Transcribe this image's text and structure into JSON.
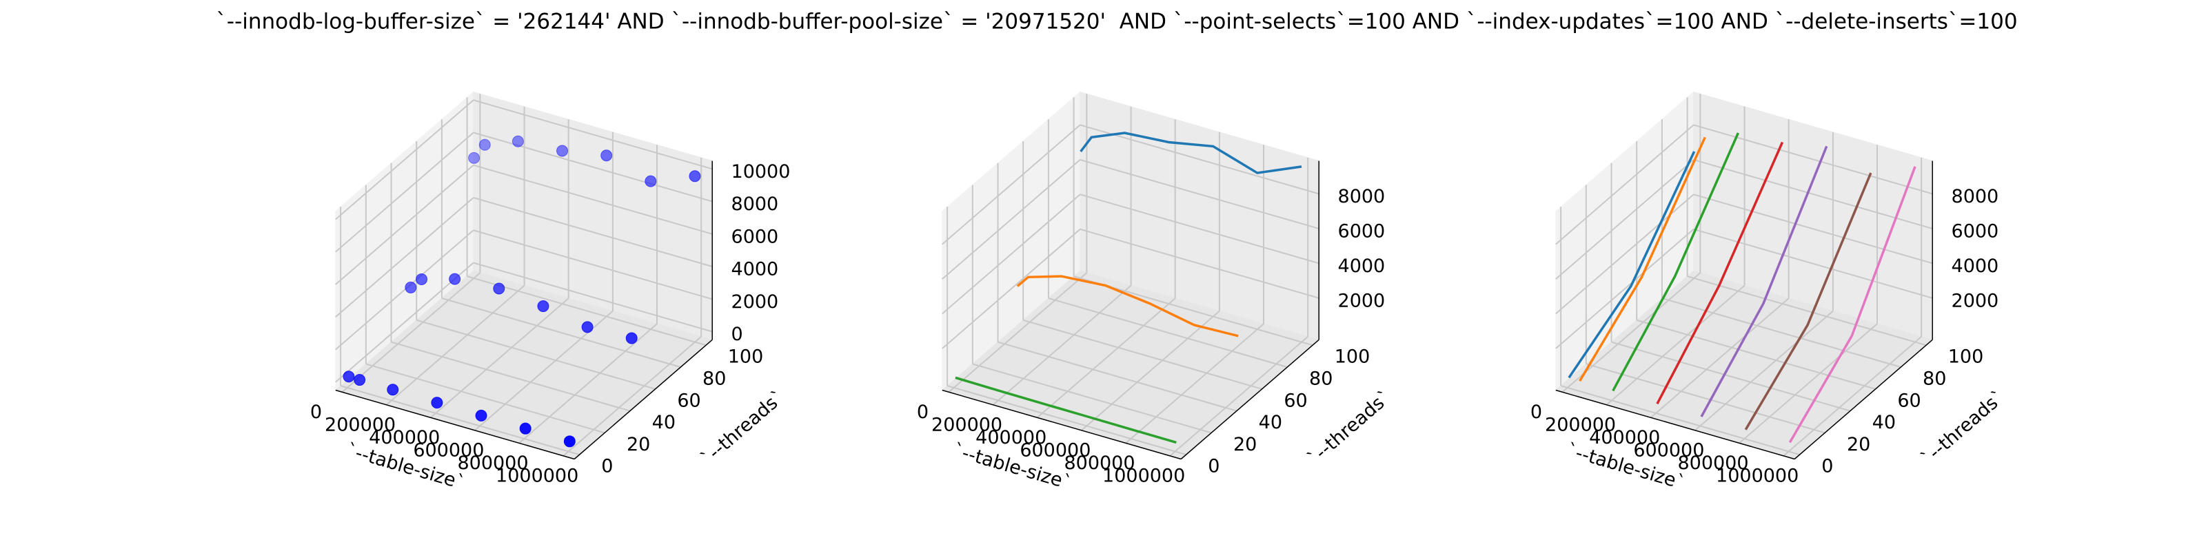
{
  "title": "`--innodb-log-buffer-size` = '262144' AND `--innodb-buffer-pool-size` = '20971520'  AND `--point-selects`=100 AND `--index-updates`=100 AND `--delete-inserts`=100",
  "chart_data": [
    {
      "type": "scatter3d",
      "xlabel": "`--table-size`",
      "ylabel": "`--threads`",
      "color": "#0000ff",
      "x": [
        1000,
        50000,
        200000,
        400000,
        600000,
        800000,
        1000000,
        1000,
        50000,
        200000,
        400000,
        600000,
        800000,
        1000000,
        1000,
        50000,
        200000,
        400000,
        600000,
        800000,
        1000000
      ],
      "y": [
        1,
        1,
        1,
        1,
        1,
        1,
        1,
        50,
        50,
        50,
        50,
        50,
        50,
        50,
        100,
        100,
        100,
        100,
        100,
        100,
        100
      ],
      "z": [
        120,
        110,
        95,
        80,
        70,
        60,
        55,
        2300,
        3000,
        3600,
        3800,
        3500,
        3000,
        3100,
        6900,
        7900,
        8700,
        8900,
        9400,
        8600,
        9700
      ],
      "xlim": [
        -30000,
        1050000
      ],
      "ylim": [
        -4,
        105
      ],
      "zlim": [
        -500,
        10500
      ],
      "xticks": [
        0,
        200000,
        400000,
        600000,
        800000,
        1000000
      ],
      "yticks": [
        0,
        20,
        40,
        60,
        80,
        100
      ],
      "zticks": [
        0,
        2000,
        4000,
        6000,
        8000,
        10000
      ]
    },
    {
      "type": "line3d",
      "xlabel": "`--table-size`",
      "ylabel": "`--threads`",
      "series": [
        {
          "color": "#1f77b4",
          "x": [
            1000,
            50000,
            200000,
            400000,
            600000,
            800000,
            1000000
          ],
          "y": [
            100,
            100,
            100,
            100,
            100,
            100,
            100
          ],
          "z": [
            6900,
            7900,
            8700,
            8900,
            9400,
            8600,
            9700
          ]
        },
        {
          "color": "#ff7f0e",
          "x": [
            1000,
            50000,
            200000,
            400000,
            600000,
            800000,
            1000000
          ],
          "y": [
            50,
            50,
            50,
            50,
            50,
            50,
            50
          ],
          "z": [
            2300,
            3000,
            3600,
            3800,
            3500,
            3000,
            3100
          ]
        },
        {
          "color": "#2ca02c",
          "x": [
            1000,
            50000,
            200000,
            400000,
            600000,
            800000,
            1000000
          ],
          "y": [
            1,
            1,
            1,
            1,
            1,
            1,
            1
          ],
          "z": [
            120,
            110,
            95,
            80,
            70,
            60,
            55
          ]
        }
      ],
      "xlim": [
        -30000,
        1050000
      ],
      "ylim": [
        -4,
        105
      ],
      "zlim": [
        -400,
        9900
      ],
      "xticks": [
        0,
        200000,
        400000,
        600000,
        800000,
        1000000
      ],
      "yticks": [
        0,
        20,
        40,
        60,
        80,
        100
      ],
      "zticks": [
        2000,
        4000,
        6000,
        8000
      ]
    },
    {
      "type": "line3d",
      "xlabel": "`--table-size`",
      "ylabel": "`--threads`",
      "series": [
        {
          "color": "#1f77b4",
          "x": [
            1000,
            1000,
            1000
          ],
          "y": [
            1,
            50,
            100
          ],
          "z": [
            120,
            2300,
            6900
          ]
        },
        {
          "color": "#ff7f0e",
          "x": [
            50000,
            50000,
            50000
          ],
          "y": [
            1,
            50,
            100
          ],
          "z": [
            110,
            3000,
            7900
          ]
        },
        {
          "color": "#2ca02c",
          "x": [
            200000,
            200000,
            200000
          ],
          "y": [
            1,
            50,
            100
          ],
          "z": [
            95,
            3600,
            8700
          ]
        },
        {
          "color": "#d62728",
          "x": [
            400000,
            400000,
            400000
          ],
          "y": [
            1,
            50,
            100
          ],
          "z": [
            80,
            3800,
            8900
          ]
        },
        {
          "color": "#9467bd",
          "x": [
            600000,
            600000,
            600000
          ],
          "y": [
            1,
            50,
            100
          ],
          "z": [
            70,
            3500,
            9400
          ]
        },
        {
          "color": "#8c564b",
          "x": [
            800000,
            800000,
            800000
          ],
          "y": [
            1,
            50,
            100
          ],
          "z": [
            60,
            3000,
            8600
          ]
        },
        {
          "color": "#e377c2",
          "x": [
            1000000,
            1000000,
            1000000
          ],
          "y": [
            1,
            50,
            100
          ],
          "z": [
            55,
            3100,
            9700
          ]
        }
      ],
      "xlim": [
        -30000,
        1050000
      ],
      "ylim": [
        -4,
        105
      ],
      "zlim": [
        -400,
        9900
      ],
      "xticks": [
        0,
        200000,
        400000,
        600000,
        800000,
        1000000
      ],
      "yticks": [
        0,
        20,
        40,
        60,
        80,
        100
      ],
      "zticks": [
        2000,
        4000,
        6000,
        8000
      ]
    }
  ]
}
